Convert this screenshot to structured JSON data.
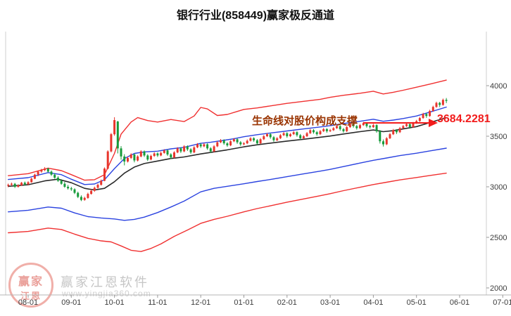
{
  "title": "银行行业(858449)赢家极反通道",
  "annotation": {
    "text": "生命线对股价构成支撑",
    "value_label": "3684.2281"
  },
  "watermark": {
    "logo_top": "赢家",
    "logo_bottom": "江恩",
    "name": "赢家江恩软件",
    "url": "www.yingjia360.com"
  },
  "colors": {
    "up": "#e8352c",
    "down": "#169b3a",
    "outer_band": "#f03030",
    "inner_band": "#2b43e0",
    "lifeline": "#2a2a2a",
    "annotation_text": "#993300",
    "annotation_arrow": "#f21c1c",
    "axis_text": "#3c3c3c",
    "watermark": "#c6c6c6"
  },
  "chart_data": {
    "type": "candlestick",
    "title": "银行行业(858449)赢家极反通道",
    "xlabel": "",
    "ylabel": "",
    "x_ticks": [
      "08-01",
      "09-01",
      "10-01",
      "11-01",
      "12-01",
      "01-01",
      "02-01",
      "03-01",
      "04-01",
      "05-01",
      "06-01",
      "07-01"
    ],
    "y_ticks": [
      4000,
      3500,
      3000,
      2500,
      2000
    ],
    "ylim": [
      2000,
      4000
    ],
    "grid": false,
    "legend": false,
    "candles_per_month": 13,
    "start_index": -6,
    "latest_lifeline_value": 3684.2281,
    "candles": [
      [
        3010,
        3032,
        2995,
        3020
      ],
      [
        3020,
        3042,
        3008,
        3030
      ],
      [
        3030,
        3038,
        2988,
        3000
      ],
      [
        3000,
        3025,
        2992,
        3015
      ],
      [
        3015,
        3048,
        3008,
        3040
      ],
      [
        3040,
        3052,
        3012,
        3025
      ],
      [
        3025,
        3055,
        3015,
        3045
      ],
      [
        3045,
        3090,
        3040,
        3080
      ],
      [
        3080,
        3130,
        3075,
        3120
      ],
      [
        3120,
        3160,
        3105,
        3150
      ],
      [
        3150,
        3178,
        3138,
        3165
      ],
      [
        3165,
        3195,
        3155,
        3180
      ],
      [
        3180,
        3188,
        3140,
        3150
      ],
      [
        3150,
        3162,
        3108,
        3120
      ],
      [
        3120,
        3135,
        3080,
        3090
      ],
      [
        3090,
        3105,
        3048,
        3060
      ],
      [
        3060,
        3075,
        3020,
        3030
      ],
      [
        3030,
        3048,
        2990,
        3000
      ],
      [
        3000,
        3018,
        2972,
        2985
      ],
      [
        2985,
        3000,
        2960,
        2975
      ],
      [
        2975,
        2985,
        2928,
        2940
      ],
      [
        2940,
        2952,
        2888,
        2900
      ],
      [
        2900,
        2915,
        2858,
        2870
      ],
      [
        2870,
        2902,
        2862,
        2890
      ],
      [
        2890,
        2942,
        2882,
        2930
      ],
      [
        2930,
        2975,
        2922,
        2960
      ],
      [
        2960,
        3002,
        2950,
        2990
      ],
      [
        2990,
        3032,
        2982,
        3020
      ],
      [
        3020,
        3072,
        3012,
        3060
      ],
      [
        3060,
        3192,
        3055,
        3180
      ],
      [
        3180,
        3362,
        3172,
        3350
      ],
      [
        3350,
        3532,
        3340,
        3520
      ],
      [
        3520,
        3688,
        3505,
        3660
      ],
      [
        3645,
        3652,
        3330,
        3380
      ],
      [
        3380,
        3402,
        3268,
        3300
      ],
      [
        3300,
        3322,
        3212,
        3250
      ],
      [
        3250,
        3298,
        3240,
        3285
      ],
      [
        3285,
        3332,
        3275,
        3320
      ],
      [
        3320,
        3330,
        3242,
        3260
      ],
      [
        3260,
        3312,
        3250,
        3300
      ],
      [
        3300,
        3362,
        3292,
        3350
      ],
      [
        3350,
        3360,
        3295,
        3310
      ],
      [
        3310,
        3322,
        3255,
        3270
      ],
      [
        3270,
        3318,
        3262,
        3305
      ],
      [
        3305,
        3342,
        3296,
        3330
      ],
      [
        3330,
        3340,
        3295,
        3310
      ],
      [
        3310,
        3348,
        3302,
        3335
      ],
      [
        3335,
        3372,
        3328,
        3360
      ],
      [
        3360,
        3370,
        3305,
        3320
      ],
      [
        3320,
        3332,
        3275,
        3290
      ],
      [
        3290,
        3352,
        3282,
        3340
      ],
      [
        3340,
        3392,
        3332,
        3380
      ],
      [
        3380,
        3390,
        3335,
        3350
      ],
      [
        3350,
        3412,
        3342,
        3400
      ],
      [
        3400,
        3410,
        3355,
        3370
      ],
      [
        3370,
        3382,
        3325,
        3340
      ],
      [
        3340,
        3402,
        3332,
        3390
      ],
      [
        3390,
        3432,
        3382,
        3420
      ],
      [
        3420,
        3430,
        3385,
        3400
      ],
      [
        3400,
        3432,
        3392,
        3420
      ],
      [
        3420,
        3430,
        3365,
        3380
      ],
      [
        3380,
        3392,
        3335,
        3350
      ],
      [
        3350,
        3412,
        3342,
        3400
      ],
      [
        3400,
        3452,
        3392,
        3440
      ],
      [
        3440,
        3472,
        3432,
        3460
      ],
      [
        3460,
        3470,
        3415,
        3430
      ],
      [
        3430,
        3442,
        3395,
        3410
      ],
      [
        3410,
        3462,
        3402,
        3450
      ],
      [
        3450,
        3482,
        3442,
        3470
      ],
      [
        3470,
        3480,
        3425,
        3440
      ],
      [
        3440,
        3452,
        3405,
        3420
      ],
      [
        3420,
        3442,
        3412,
        3430
      ],
      [
        3430,
        3468,
        3422,
        3455
      ],
      [
        3455,
        3492,
        3448,
        3480
      ],
      [
        3480,
        3490,
        3445,
        3460
      ],
      [
        3460,
        3472,
        3415,
        3430
      ],
      [
        3430,
        3482,
        3422,
        3470
      ],
      [
        3470,
        3512,
        3462,
        3500
      ],
      [
        3500,
        3532,
        3492,
        3520
      ],
      [
        3520,
        3530,
        3475,
        3490
      ],
      [
        3490,
        3502,
        3445,
        3460
      ],
      [
        3460,
        3492,
        3452,
        3480
      ],
      [
        3480,
        3522,
        3472,
        3510
      ],
      [
        3510,
        3542,
        3502,
        3530
      ],
      [
        3530,
        3540,
        3485,
        3500
      ],
      [
        3500,
        3532,
        3492,
        3520
      ],
      [
        3520,
        3552,
        3512,
        3540
      ],
      [
        3540,
        3550,
        3495,
        3510
      ],
      [
        3510,
        3522,
        3465,
        3480
      ],
      [
        3480,
        3512,
        3472,
        3500
      ],
      [
        3500,
        3542,
        3492,
        3530
      ],
      [
        3530,
        3572,
        3522,
        3560
      ],
      [
        3560,
        3570,
        3525,
        3540
      ],
      [
        3540,
        3552,
        3505,
        3520
      ],
      [
        3520,
        3562,
        3512,
        3550
      ],
      [
        3550,
        3582,
        3542,
        3570
      ],
      [
        3570,
        3580,
        3535,
        3550
      ],
      [
        3550,
        3572,
        3542,
        3560
      ],
      [
        3560,
        3592,
        3552,
        3580
      ],
      [
        3580,
        3612,
        3572,
        3600
      ],
      [
        3600,
        3610,
        3555,
        3570
      ],
      [
        3570,
        3582,
        3535,
        3550
      ],
      [
        3550,
        3602,
        3542,
        3590
      ],
      [
        3590,
        3632,
        3582,
        3620
      ],
      [
        3620,
        3630,
        3585,
        3600
      ],
      [
        3600,
        3612,
        3565,
        3580
      ],
      [
        3580,
        3622,
        3572,
        3610
      ],
      [
        3610,
        3642,
        3602,
        3630
      ],
      [
        3630,
        3640,
        3585,
        3600
      ],
      [
        3600,
        3612,
        3575,
        3590
      ],
      [
        3590,
        3622,
        3582,
        3610
      ],
      [
        3610,
        3618,
        3535,
        3550
      ],
      [
        3550,
        3562,
        3428,
        3450
      ],
      [
        3450,
        3468,
        3398,
        3420
      ],
      [
        3420,
        3492,
        3412,
        3480
      ],
      [
        3480,
        3532,
        3472,
        3520
      ],
      [
        3520,
        3572,
        3512,
        3560
      ],
      [
        3560,
        3570,
        3522,
        3540
      ],
      [
        3540,
        3592,
        3532,
        3580
      ],
      [
        3580,
        3612,
        3572,
        3600
      ],
      [
        3600,
        3632,
        3592,
        3620
      ],
      [
        3620,
        3630,
        3575,
        3590
      ],
      [
        3590,
        3642,
        3582,
        3630
      ],
      [
        3630,
        3662,
        3622,
        3650
      ],
      [
        3650,
        3692,
        3642,
        3680
      ],
      [
        3680,
        3732,
        3672,
        3720
      ],
      [
        3720,
        3730,
        3682,
        3700
      ],
      [
        3700,
        3762,
        3692,
        3750
      ],
      [
        3750,
        3802,
        3742,
        3790
      ],
      [
        3790,
        3842,
        3782,
        3830
      ],
      [
        3830,
        3840,
        3788,
        3810
      ],
      [
        3810,
        3872,
        3802,
        3860
      ],
      [
        3860,
        3878,
        3828,
        3850
      ]
    ],
    "lines": {
      "upper_outer": [
        [
          -6,
          3110
        ],
        [
          0,
          3130
        ],
        [
          6,
          3185
        ],
        [
          10,
          3160
        ],
        [
          13,
          3120
        ],
        [
          17,
          3065
        ],
        [
          20,
          3070
        ],
        [
          23,
          3120
        ],
        [
          26,
          3330
        ],
        [
          28,
          3520
        ],
        [
          31,
          3640
        ],
        [
          33,
          3685
        ],
        [
          36,
          3655
        ],
        [
          39,
          3640
        ],
        [
          43,
          3665
        ],
        [
          47,
          3645
        ],
        [
          50,
          3700
        ],
        [
          52,
          3785
        ],
        [
          54,
          3770
        ],
        [
          57,
          3705
        ],
        [
          60,
          3715
        ],
        [
          63,
          3745
        ],
        [
          65,
          3765
        ],
        [
          69,
          3780
        ],
        [
          73,
          3800
        ],
        [
          78,
          3825
        ],
        [
          83,
          3845
        ],
        [
          88,
          3865
        ],
        [
          91,
          3885
        ],
        [
          95,
          3905
        ],
        [
          100,
          3925
        ],
        [
          104,
          3945
        ],
        [
          107,
          3918
        ],
        [
          110,
          3935
        ],
        [
          113,
          3955
        ],
        [
          117,
          3985
        ],
        [
          121,
          4015
        ],
        [
          126,
          4055
        ]
      ],
      "upper_inner": [
        [
          -6,
          3072
        ],
        [
          0,
          3090
        ],
        [
          6,
          3140
        ],
        [
          10,
          3120
        ],
        [
          13,
          3075
        ],
        [
          17,
          3022
        ],
        [
          20,
          3028
        ],
        [
          23,
          3070
        ],
        [
          26,
          3180
        ],
        [
          29,
          3280
        ],
        [
          32,
          3330
        ],
        [
          35,
          3345
        ],
        [
          39,
          3352
        ],
        [
          43,
          3375
        ],
        [
          47,
          3390
        ],
        [
          52,
          3430
        ],
        [
          55,
          3440
        ],
        [
          58,
          3455
        ],
        [
          62,
          3475
        ],
        [
          65,
          3495
        ],
        [
          69,
          3515
        ],
        [
          73,
          3532
        ],
        [
          78,
          3552
        ],
        [
          83,
          3572
        ],
        [
          88,
          3592
        ],
        [
          91,
          3605
        ],
        [
          95,
          3625
        ],
        [
          100,
          3648
        ],
        [
          104,
          3668
        ],
        [
          107,
          3648
        ],
        [
          110,
          3660
        ],
        [
          113,
          3675
        ],
        [
          117,
          3700
        ],
        [
          121,
          3738
        ],
        [
          126,
          3788
        ]
      ],
      "lifeline": [
        [
          -6,
          3005
        ],
        [
          0,
          3020
        ],
        [
          5,
          3058
        ],
        [
          9,
          3075
        ],
        [
          13,
          3040
        ],
        [
          17,
          2985
        ],
        [
          20,
          2968
        ],
        [
          23,
          2985
        ],
        [
          26,
          3050
        ],
        [
          29,
          3135
        ],
        [
          32,
          3195
        ],
        [
          35,
          3230
        ],
        [
          39,
          3255
        ],
        [
          43,
          3280
        ],
        [
          47,
          3295
        ],
        [
          52,
          3325
        ],
        [
          56,
          3345
        ],
        [
          60,
          3365
        ],
        [
          65,
          3395
        ],
        [
          69,
          3415
        ],
        [
          73,
          3432
        ],
        [
          78,
          3452
        ],
        [
          83,
          3470
        ],
        [
          88,
          3490
        ],
        [
          91,
          3502
        ],
        [
          95,
          3522
        ],
        [
          100,
          3545
        ],
        [
          104,
          3562
        ],
        [
          107,
          3545
        ],
        [
          110,
          3555
        ],
        [
          113,
          3572
        ],
        [
          117,
          3595
        ],
        [
          121,
          3635
        ],
        [
          126,
          3684
        ]
      ],
      "lower_inner": [
        [
          -6,
          2752
        ],
        [
          0,
          2768
        ],
        [
          6,
          2800
        ],
        [
          10,
          2788
        ],
        [
          14,
          2742
        ],
        [
          18,
          2705
        ],
        [
          22,
          2692
        ],
        [
          26,
          2682
        ],
        [
          29,
          2668
        ],
        [
          32,
          2678
        ],
        [
          35,
          2700
        ],
        [
          39,
          2745
        ],
        [
          43,
          2800
        ],
        [
          47,
          2858
        ],
        [
          52,
          2950
        ],
        [
          56,
          2985
        ],
        [
          60,
          3005
        ],
        [
          65,
          3030
        ],
        [
          69,
          3052
        ],
        [
          73,
          3072
        ],
        [
          78,
          3100
        ],
        [
          83,
          3128
        ],
        [
          88,
          3155
        ],
        [
          91,
          3172
        ],
        [
          95,
          3200
        ],
        [
          100,
          3235
        ],
        [
          104,
          3262
        ],
        [
          108,
          3285
        ],
        [
          112,
          3308
        ],
        [
          117,
          3332
        ],
        [
          121,
          3355
        ],
        [
          126,
          3382
        ]
      ],
      "lower_outer": [
        [
          -6,
          2545
        ],
        [
          0,
          2558
        ],
        [
          6,
          2592
        ],
        [
          10,
          2578
        ],
        [
          14,
          2532
        ],
        [
          18,
          2490
        ],
        [
          22,
          2465
        ],
        [
          25,
          2455
        ],
        [
          28,
          2415
        ],
        [
          31,
          2372
        ],
        [
          34,
          2360
        ],
        [
          37,
          2390
        ],
        [
          40,
          2435
        ],
        [
          44,
          2510
        ],
        [
          48,
          2572
        ],
        [
          52,
          2638
        ],
        [
          56,
          2678
        ],
        [
          60,
          2708
        ],
        [
          65,
          2752
        ],
        [
          69,
          2785
        ],
        [
          73,
          2812
        ],
        [
          78,
          2848
        ],
        [
          83,
          2880
        ],
        [
          88,
          2912
        ],
        [
          91,
          2932
        ],
        [
          95,
          2962
        ],
        [
          100,
          2995
        ],
        [
          104,
          3022
        ],
        [
          108,
          3045
        ],
        [
          112,
          3068
        ],
        [
          117,
          3092
        ],
        [
          121,
          3112
        ],
        [
          126,
          3135
        ]
      ]
    }
  }
}
